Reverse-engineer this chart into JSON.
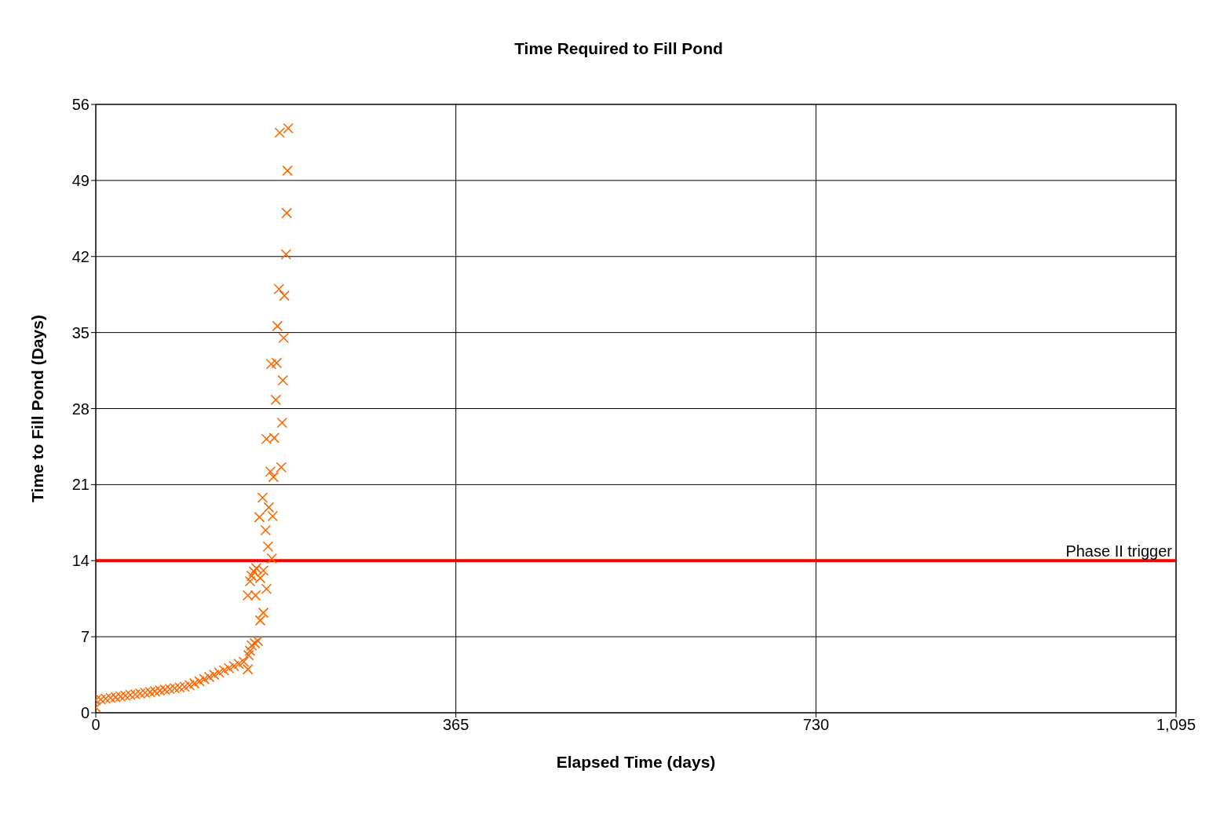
{
  "chart_data": {
    "type": "scatter",
    "title": "Time Required to Fill Pond",
    "xlabel": "Elapsed Time (days)",
    "ylabel": "Time to Fill Pond (Days)",
    "x": [
      0,
      0,
      5,
      10,
      15,
      20,
      25,
      30,
      35,
      40,
      45,
      50,
      55,
      60,
      65,
      70,
      75,
      80,
      85,
      90,
      95,
      100,
      105,
      110,
      115,
      120,
      125,
      130,
      135,
      140,
      145,
      150,
      154.1,
      154.8,
      156.4,
      158.0,
      161.2,
      164.3,
      154.1,
      161.9,
      166.7,
      169.9,
      173.0,
      156.4,
      158.0,
      160.3,
      162.7,
      166.7,
      169.9,
      178.5,
      174.6,
      172.2,
      165.9,
      179.3,
      175.4,
      169.1,
      177.0,
      180.1,
      188.0,
      173.0,
      180.9,
      188.8,
      182.5,
      189.6,
      177.8,
      183.3,
      190.4,
      184.1,
      191.2,
      185.7,
      192.8,
      193.6,
      194.3,
      186.4,
      195.1
    ],
    "values": [
      0.5,
      1.16,
      1.23,
      1.3,
      1.37,
      1.44,
      1.5,
      1.57,
      1.64,
      1.7,
      1.77,
      1.84,
      1.91,
      1.98,
      2.05,
      2.12,
      2.19,
      2.26,
      2.33,
      2.4,
      2.55,
      2.7,
      2.9,
      3.1,
      3.3,
      3.5,
      3.7,
      3.9,
      4.1,
      4.3,
      4.5,
      4.7,
      4.0,
      5.3,
      5.7,
      6.2,
      6.4,
      6.6,
      10.8,
      10.8,
      8.5,
      9.2,
      11.4,
      12.1,
      12.6,
      13.0,
      13.3,
      12.4,
      13.1,
      14.2,
      15.3,
      16.8,
      18.0,
      18.1,
      18.9,
      19.8,
      22.2,
      21.7,
      22.6,
      25.2,
      25.3,
      26.7,
      28.8,
      30.6,
      32.1,
      32.2,
      34.5,
      35.6,
      38.4,
      39.0,
      42.2,
      46.0,
      49.9,
      53.4,
      53.8
    ],
    "color": "#ff6600",
    "marker": "cross",
    "xlim": [
      0,
      1095
    ],
    "xticks": [
      0,
      365,
      730,
      {
        "value": 1095,
        "label": "1,095"
      }
    ],
    "ylim": [
      0,
      56
    ],
    "yticks": [
      0,
      7,
      14,
      21,
      28,
      35,
      42,
      49,
      56
    ],
    "grid": true,
    "legend": false,
    "ref_lines": [
      {
        "axis": "y",
        "value": 14,
        "label": "Phase II trigger",
        "color": "#ff0000"
      }
    ]
  }
}
